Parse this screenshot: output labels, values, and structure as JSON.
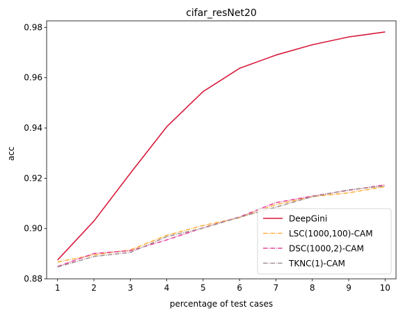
{
  "chart_data": {
    "type": "line",
    "title": "cifar_resNet20",
    "xlabel": "percentage of test cases",
    "ylabel": "acc",
    "x": [
      1,
      2,
      3,
      4,
      5,
      6,
      7,
      8,
      9,
      10
    ],
    "xlim": [
      0.7,
      10.3
    ],
    "ylim": [
      0.88,
      0.9826
    ],
    "xticks": [
      "1",
      "2",
      "3",
      "4",
      "5",
      "6",
      "7",
      "8",
      "9",
      "10"
    ],
    "yticks": [
      "0.88",
      "0.90",
      "0.92",
      "0.94",
      "0.96",
      "0.98"
    ],
    "grid": false,
    "legend_position": "lower-right",
    "series": [
      {
        "name": "DeepGini",
        "color": "#d7193a",
        "style": "solid",
        "values": [
          0.8875,
          0.903,
          0.922,
          0.9405,
          0.9545,
          0.9637,
          0.969,
          0.9731,
          0.9762,
          0.9782
        ]
      },
      {
        "name": "LSC(1000,100)-CAM",
        "color": "#fbb03b",
        "style": "dashdot",
        "values": [
          0.8867,
          0.8895,
          0.8915,
          0.8973,
          0.9012,
          0.9043,
          0.9095,
          0.9127,
          0.9142,
          0.9167
        ]
      },
      {
        "name": "DSC(1000,2)-CAM",
        "color": "#e8409a",
        "style": "dashdot",
        "values": [
          0.8849,
          0.8901,
          0.8912,
          0.8955,
          0.9003,
          0.9046,
          0.9103,
          0.9129,
          0.9152,
          0.9174
        ]
      },
      {
        "name": "TKNC(1)-CAM",
        "color": "#a09090",
        "style": "dashdot",
        "values": [
          0.8847,
          0.8889,
          0.8905,
          0.8968,
          0.9002,
          0.9045,
          0.9085,
          0.9127,
          0.9154,
          0.917
        ]
      }
    ]
  }
}
